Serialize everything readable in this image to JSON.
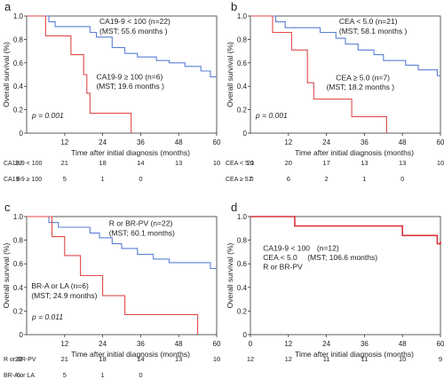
{
  "chart_data": [
    {
      "type": "line",
      "panel": "a",
      "xlabel": "Time after initial diagnosis (months)",
      "ylabel": "Overall survival (%)",
      "xlim": [
        0,
        60
      ],
      "ylim": [
        0,
        1.0
      ],
      "xticks": [
        12,
        24,
        36,
        48,
        60
      ],
      "yticks": [
        0,
        0.2,
        0.4,
        0.6,
        0.8,
        1.0
      ],
      "pvalue": "p = 0.001",
      "series": [
        {
          "name": "CA19-9 < 100 (n=22)",
          "mst": "(MST; 55.6 months )",
          "color": "#5b7fd6",
          "points": [
            [
              0,
              1.0
            ],
            [
              7,
              1.0
            ],
            [
              7,
              0.95
            ],
            [
              9,
              0.95
            ],
            [
              9,
              0.91
            ],
            [
              20,
              0.91
            ],
            [
              20,
              0.86
            ],
            [
              22,
              0.86
            ],
            [
              22,
              0.82
            ],
            [
              27,
              0.82
            ],
            [
              27,
              0.73
            ],
            [
              31,
              0.73
            ],
            [
              31,
              0.68
            ],
            [
              35,
              0.68
            ],
            [
              35,
              0.65
            ],
            [
              41,
              0.65
            ],
            [
              41,
              0.62
            ],
            [
              45,
              0.62
            ],
            [
              45,
              0.6
            ],
            [
              50,
              0.6
            ],
            [
              50,
              0.57
            ],
            [
              55,
              0.57
            ],
            [
              55,
              0.53
            ],
            [
              58,
              0.53
            ],
            [
              58,
              0.48
            ],
            [
              60,
              0.48
            ]
          ]
        },
        {
          "name": "CA19-9 ≥ 100 (n=6)",
          "mst": "(MST; 19.6 months )",
          "color": "#e04a4a",
          "points": [
            [
              0,
              1.0
            ],
            [
              6,
              1.0
            ],
            [
              6,
              0.83
            ],
            [
              14,
              0.83
            ],
            [
              14,
              0.67
            ],
            [
              18,
              0.67
            ],
            [
              18,
              0.5
            ],
            [
              19,
              0.5
            ],
            [
              19,
              0.34
            ],
            [
              20,
              0.34
            ],
            [
              20,
              0.17
            ],
            [
              33,
              0.17
            ],
            [
              33,
              0.0
            ]
          ]
        }
      ],
      "risk_table": [
        {
          "label": "CA19-9 < 100",
          "values": [
            "22",
            "21",
            "18",
            "14",
            "13",
            "10"
          ]
        },
        {
          "label": "CA19-9 ≥ 100",
          "values": [
            "6",
            "5",
            "1",
            "0"
          ]
        }
      ]
    },
    {
      "type": "line",
      "panel": "b",
      "xlabel": "Time after initial diagnosis (months)",
      "ylabel": "Overall survival (%)",
      "xlim": [
        0,
        60
      ],
      "ylim": [
        0,
        1.0
      ],
      "xticks": [
        12,
        24,
        36,
        48,
        60
      ],
      "yticks": [
        0,
        0.2,
        0.4,
        0.6,
        0.8,
        1.0
      ],
      "pvalue": "p = 0.001",
      "series": [
        {
          "name": "CEA < 5.0 (n=21)",
          "mst": "(MST; 58.1 months )",
          "color": "#5b7fd6",
          "points": [
            [
              0,
              1.0
            ],
            [
              8,
              1.0
            ],
            [
              8,
              0.95
            ],
            [
              11,
              0.95
            ],
            [
              11,
              0.9
            ],
            [
              22,
              0.9
            ],
            [
              22,
              0.86
            ],
            [
              27,
              0.86
            ],
            [
              27,
              0.81
            ],
            [
              30,
              0.81
            ],
            [
              30,
              0.76
            ],
            [
              34,
              0.76
            ],
            [
              34,
              0.71
            ],
            [
              39,
              0.71
            ],
            [
              39,
              0.67
            ],
            [
              42,
              0.67
            ],
            [
              42,
              0.62
            ],
            [
              49,
              0.62
            ],
            [
              49,
              0.58
            ],
            [
              53,
              0.58
            ],
            [
              53,
              0.54
            ],
            [
              59,
              0.54
            ],
            [
              59,
              0.49
            ],
            [
              60,
              0.49
            ]
          ]
        },
        {
          "name": "CEA ≥ 5.0 (n=7)",
          "mst": "(MST; 18.2 months )",
          "color": "#e04a4a",
          "points": [
            [
              0,
              1.0
            ],
            [
              7,
              1.0
            ],
            [
              7,
              0.86
            ],
            [
              13,
              0.86
            ],
            [
              13,
              0.71
            ],
            [
              18,
              0.71
            ],
            [
              18,
              0.43
            ],
            [
              20,
              0.43
            ],
            [
              20,
              0.29
            ],
            [
              32,
              0.29
            ],
            [
              32,
              0.14
            ],
            [
              43,
              0.14
            ],
            [
              43,
              0.0
            ]
          ]
        }
      ],
      "risk_table": [
        {
          "label": "CEA < 5.0",
          "values": [
            "21",
            "20",
            "17",
            "13",
            "13",
            "10"
          ]
        },
        {
          "label": "CEA ≥ 5.0",
          "values": [
            "7",
            "6",
            "2",
            "1",
            "0"
          ]
        }
      ]
    },
    {
      "type": "line",
      "panel": "c",
      "xlabel": "Time after initial diagnosis (months)",
      "ylabel": "Overall survival (%)",
      "xlim": [
        0,
        60
      ],
      "ylim": [
        0,
        1.0
      ],
      "xticks": [
        12,
        24,
        36,
        48,
        60
      ],
      "yticks": [
        0,
        0.2,
        0.4,
        0.6,
        0.8,
        1.0
      ],
      "pvalue": "p = 0.011",
      "series": [
        {
          "name": "R or BR-PV (n=22)",
          "mst": "(MST; 60.1 months)",
          "color": "#5b7fd6",
          "points": [
            [
              0,
              1.0
            ],
            [
              7,
              1.0
            ],
            [
              7,
              0.95
            ],
            [
              10,
              0.95
            ],
            [
              10,
              0.91
            ],
            [
              20,
              0.91
            ],
            [
              20,
              0.86
            ],
            [
              23,
              0.86
            ],
            [
              23,
              0.82
            ],
            [
              27,
              0.82
            ],
            [
              27,
              0.77
            ],
            [
              30,
              0.77
            ],
            [
              30,
              0.73
            ],
            [
              35,
              0.73
            ],
            [
              35,
              0.68
            ],
            [
              40,
              0.68
            ],
            [
              40,
              0.64
            ],
            [
              45,
              0.64
            ],
            [
              45,
              0.61
            ],
            [
              58,
              0.61
            ],
            [
              58,
              0.56
            ],
            [
              60,
              0.56
            ]
          ]
        },
        {
          "name": "BR-A or LA (n=6)",
          "mst": "(MST; 24.9 months)",
          "color": "#e04a4a",
          "points": [
            [
              0,
              1.0
            ],
            [
              8,
              1.0
            ],
            [
              8,
              0.83
            ],
            [
              12,
              0.83
            ],
            [
              12,
              0.67
            ],
            [
              17,
              0.67
            ],
            [
              17,
              0.5
            ],
            [
              24,
              0.5
            ],
            [
              24,
              0.33
            ],
            [
              31,
              0.33
            ],
            [
              31,
              0.17
            ],
            [
              54,
              0.17
            ],
            [
              54,
              0.0
            ]
          ]
        }
      ],
      "risk_table": [
        {
          "label": "R or BR-PV",
          "values": [
            "22",
            "21",
            "18",
            "14",
            "13",
            "10"
          ]
        },
        {
          "label": "BR-A or LA",
          "values": [
            "6",
            "5",
            "1",
            "0"
          ]
        }
      ]
    },
    {
      "type": "line",
      "panel": "d",
      "xlabel": "Time after initial diagnosis (months)",
      "ylabel": "Overall survival (%)",
      "xlim": [
        0,
        60
      ],
      "ylim": [
        0,
        1.0
      ],
      "xticks": [
        0,
        12,
        24,
        36,
        48,
        60
      ],
      "yticks": [
        0,
        0.2,
        0.4,
        0.6,
        0.8,
        1.0
      ],
      "annotation_lines": [
        "CA19-9 < 100",
        "CEA < 5.0",
        "R or BR-PV"
      ],
      "n_label": "(n=12)",
      "mst": "(MST; 106.6 months)",
      "series": [
        {
          "name": "CA19-9 < 100, CEA < 5.0, R or BR-PV (n=12)",
          "color": "#d9343c",
          "points": [
            [
              0,
              1.0
            ],
            [
              14,
              1.0
            ],
            [
              14,
              0.92
            ],
            [
              48,
              0.92
            ],
            [
              48,
              0.84
            ],
            [
              59,
              0.84
            ],
            [
              59,
              0.77
            ],
            [
              60,
              0.77
            ],
            [
              60,
              0.79
            ]
          ]
        }
      ],
      "risk_table": [
        {
          "label": "",
          "values": [
            "12",
            "12",
            "11",
            "11",
            "10",
            "9"
          ]
        }
      ]
    }
  ]
}
